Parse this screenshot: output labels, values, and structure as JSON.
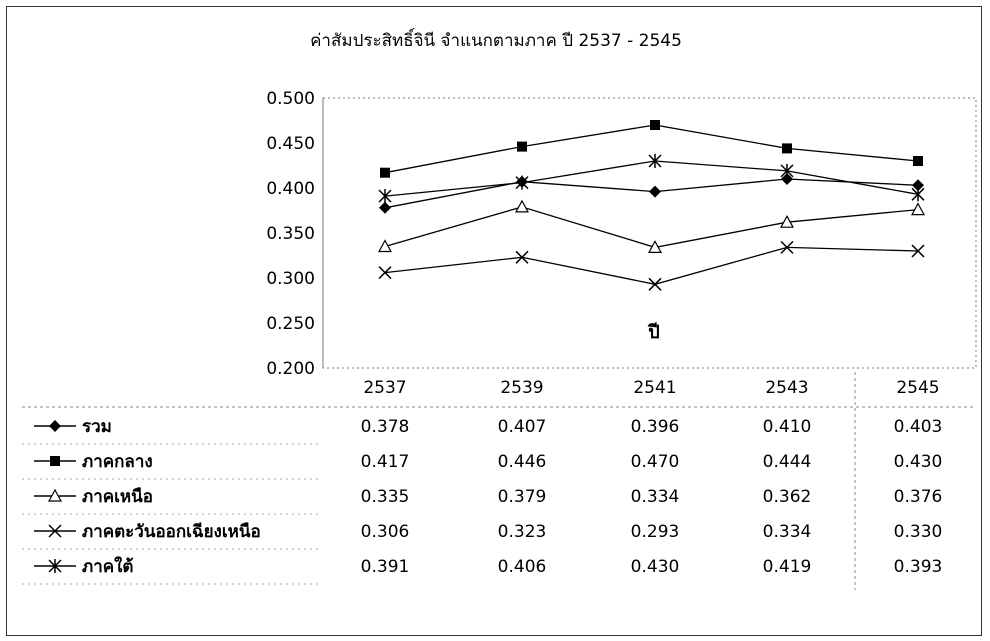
{
  "chart_data": {
    "type": "line",
    "title": "ค่าสัมประสิทธิ์จินี จำแนกตามภาค ปี 2537 - 2545",
    "xlabel": "ปี",
    "ylabel": "",
    "categories": [
      "2537",
      "2539",
      "2541",
      "2543",
      "2545"
    ],
    "ylim": [
      0.2,
      0.5
    ],
    "yticks": [
      "0.500",
      "0.450",
      "0.400",
      "0.350",
      "0.300",
      "0.250",
      "0.200"
    ],
    "grid": false,
    "legend": "data-table-below",
    "series": [
      {
        "name": "รวม",
        "marker": "diamond",
        "values": [
          0.378,
          0.407,
          0.396,
          0.41,
          0.403
        ],
        "labels": [
          "0.378",
          "0.407",
          "0.396",
          "0.410",
          "0.403"
        ]
      },
      {
        "name": "ภาคกลาง",
        "marker": "square",
        "values": [
          0.417,
          0.446,
          0.47,
          0.444,
          0.43
        ],
        "labels": [
          "0.417",
          "0.446",
          "0.470",
          "0.444",
          "0.430"
        ]
      },
      {
        "name": "ภาคเหนือ",
        "marker": "triangle-open",
        "values": [
          0.335,
          0.379,
          0.334,
          0.362,
          0.376
        ],
        "labels": [
          "0.335",
          "0.379",
          "0.334",
          "0.362",
          "0.376"
        ]
      },
      {
        "name": "ภาคตะวันออกเฉียงเหนือ",
        "marker": "x",
        "values": [
          0.306,
          0.323,
          0.293,
          0.334,
          0.33
        ],
        "labels": [
          "0.306",
          "0.323",
          "0.293",
          "0.334",
          "0.330"
        ]
      },
      {
        "name": "ภาคใต้",
        "marker": "star",
        "values": [
          0.391,
          0.406,
          0.43,
          0.419,
          0.393
        ],
        "labels": [
          "0.391",
          "0.406",
          "0.430",
          "0.419",
          "0.393"
        ]
      }
    ],
    "colors": {
      "line": "#000000",
      "background": "#ffffff",
      "watermark": "#c8c8c8"
    }
  }
}
